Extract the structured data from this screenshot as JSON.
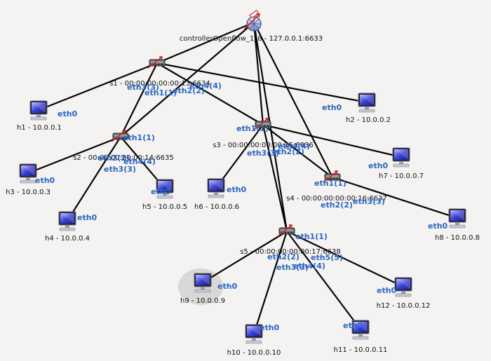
{
  "controller": {
    "label": "controllerOpenflow_1_8 - 127.0.0.1:6633",
    "icon": "openflow-controller-icon"
  },
  "switches": [
    {
      "id": "s1",
      "label": "s1 - 00:00:00:00:00:13:6634",
      "icon": "openflow-switch-icon"
    },
    {
      "id": "s2",
      "label": "s2 - 00:00:00:00:00:14:6635",
      "icon": "openflow-switch-icon"
    },
    {
      "id": "s3",
      "label": "s3 - 00:00:00:00:00:15:6636",
      "icon": "openflow-switch-icon"
    },
    {
      "id": "s4",
      "label": "s4 - 00:00:00:00:00:16:6637",
      "icon": "openflow-switch-icon"
    },
    {
      "id": "s5",
      "label": "s5 - 00:00:00:00:00:17:6638",
      "icon": "openflow-switch-icon"
    }
  ],
  "hosts": [
    {
      "id": "h1",
      "label": "h1 - 10.0.0.1",
      "icon": "host-computer-icon"
    },
    {
      "id": "h2",
      "label": "h2 - 10.0.0.2",
      "icon": "host-computer-icon"
    },
    {
      "id": "h3",
      "label": "h3 - 10.0.0.3",
      "icon": "host-computer-icon"
    },
    {
      "id": "h4",
      "label": "h4 - 10.0.0.4",
      "icon": "host-computer-icon"
    },
    {
      "id": "h5",
      "label": "h5 - 10.0.0.5",
      "icon": "host-computer-icon"
    },
    {
      "id": "h6",
      "label": "h6 - 10.0.0.6",
      "icon": "host-computer-icon"
    },
    {
      "id": "h7",
      "label": "h7 - 10.0.0.7",
      "icon": "host-computer-icon"
    },
    {
      "id": "h8",
      "label": "h8 - 10.0.0.8",
      "icon": "host-computer-icon"
    },
    {
      "id": "h9",
      "label": "h9 - 10.0.0.9",
      "icon": "host-computer-icon",
      "selected": true
    },
    {
      "id": "h10",
      "label": "h10 - 10.0.0.10",
      "icon": "host-computer-icon"
    },
    {
      "id": "h11",
      "label": "h11 - 10.0.0.11",
      "icon": "host-computer-icon"
    },
    {
      "id": "h12",
      "label": "h12 - 10.0.0.12",
      "icon": "host-computer-icon"
    }
  ],
  "links": [
    {
      "from": "controller",
      "to": "s1"
    },
    {
      "from": "controller",
      "to": "s2"
    },
    {
      "from": "controller",
      "to": "s3"
    },
    {
      "from": "controller",
      "to": "s4"
    },
    {
      "from": "controller",
      "to": "s5"
    },
    {
      "from": "s1",
      "to": "h1"
    },
    {
      "from": "s1",
      "to": "h2"
    },
    {
      "from": "s1",
      "to": "s2"
    },
    {
      "from": "s1",
      "to": "s3"
    },
    {
      "from": "s2",
      "to": "h3"
    },
    {
      "from": "s2",
      "to": "h4"
    },
    {
      "from": "s2",
      "to": "h5"
    },
    {
      "from": "s3",
      "to": "h6"
    },
    {
      "from": "s3",
      "to": "h7"
    },
    {
      "from": "s3",
      "to": "s4"
    },
    {
      "from": "s3",
      "to": "s5"
    },
    {
      "from": "s4",
      "to": "h8"
    },
    {
      "from": "s5",
      "to": "h9"
    },
    {
      "from": "s5",
      "to": "h10"
    },
    {
      "from": "s5",
      "to": "h11"
    },
    {
      "from": "s5",
      "to": "h12"
    }
  ],
  "port_labels": [
    "eth0",
    "eth0",
    "eth0",
    "eth0",
    "eth0",
    "eth0",
    "eth0",
    "eth0",
    "eth0",
    "eth0",
    "eth0",
    "eth0",
    "eth1(1)",
    "eth2(2)",
    "eth3(3)",
    "eth4(4)",
    "eth1(1)",
    "eth2(2)",
    "eth3(3)",
    "eth4(4)",
    "eth1(1)",
    "eth2(2)",
    "eth3(3)",
    "eth4(4)",
    "eth1(1)",
    "eth2(2)",
    "eth3(3)",
    "eth1(1)",
    "eth2(2)",
    "eth3(3)",
    "eth4(4)",
    "eth5(5)"
  ],
  "colors": {
    "background": "#f4f3f1",
    "link": "#050505",
    "port_label": "#2a66c2",
    "host_screen": "#3a3fd6",
    "switch_accent": "#d22020",
    "selection_halo": "#d2d2d2"
  }
}
